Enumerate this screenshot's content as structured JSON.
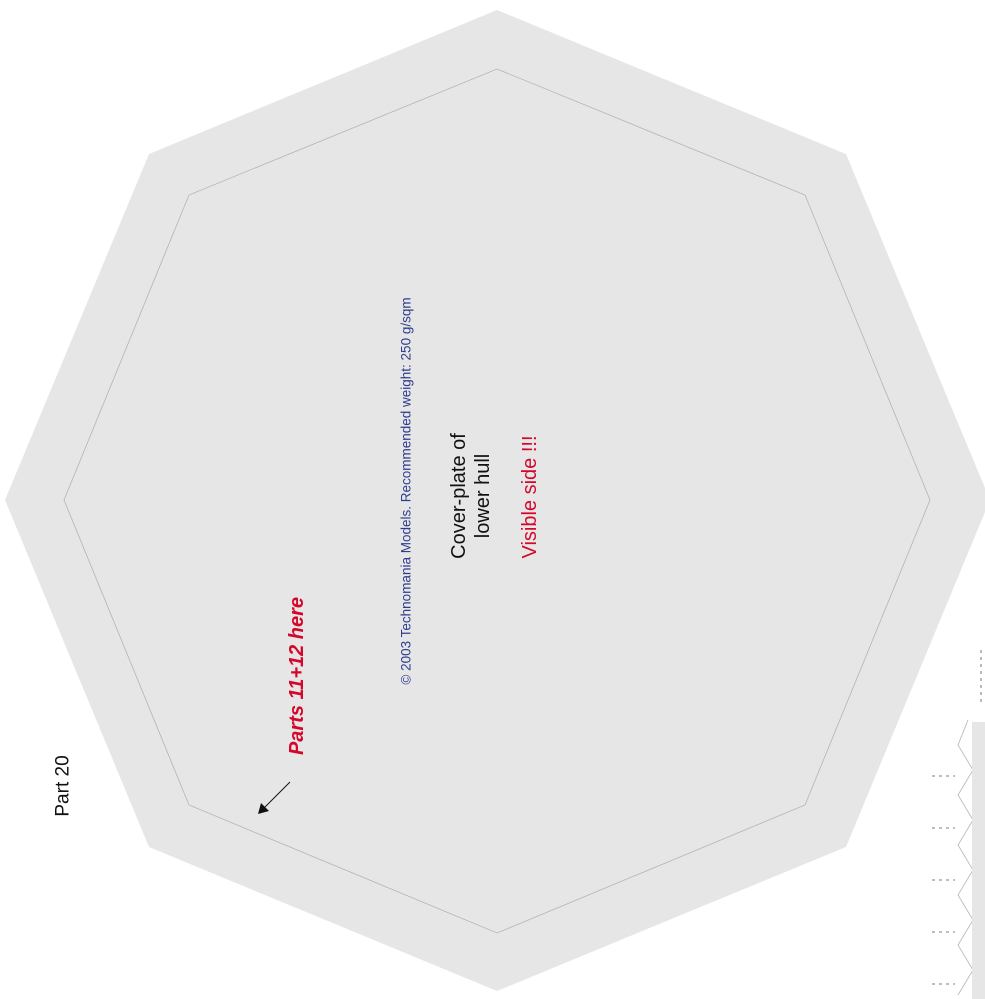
{
  "sheet": {
    "part_label": "Part 20",
    "title_line1": "Cover-plate of",
    "title_line2": "lower hull",
    "visible_side": "Visible side !!!",
    "copyright": "© 2003 Technomania Models. Recommended weight: 250 g/sqm",
    "parts_note": "Parts 11+12 here"
  },
  "colors": {
    "plate_fill": "#e6e6e6",
    "fold_line": "#b4b4b4",
    "red_text": "#d4072b",
    "blue_text": "#2f3d8f",
    "black_text": "#111111"
  }
}
